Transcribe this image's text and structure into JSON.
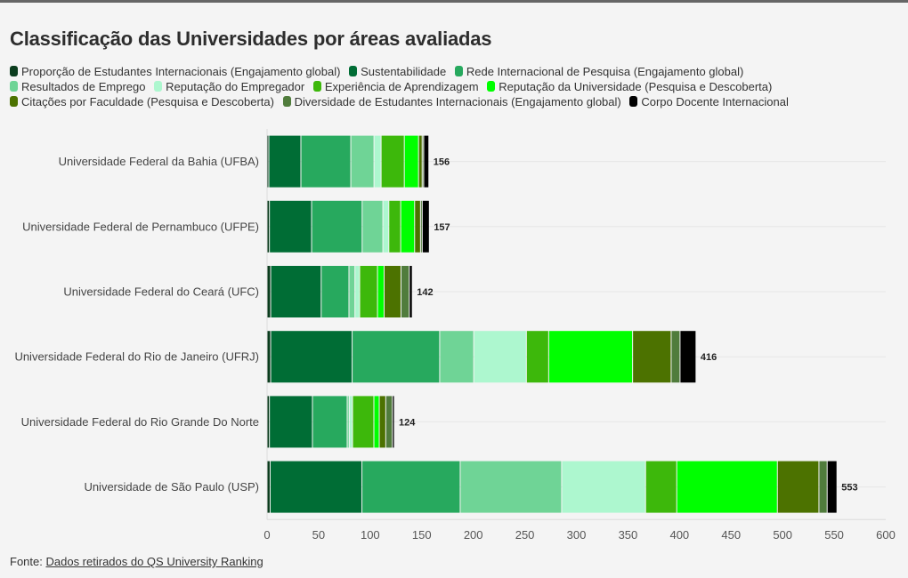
{
  "title": "Classificação das Universidades por áreas avaliadas",
  "footer": {
    "prefix": "Fonte:",
    "link_text": "Dados retirados do QS University Ranking"
  },
  "chart_data": {
    "type": "bar",
    "orientation": "horizontal",
    "stacked": true,
    "title": "Classificação das Universidades por áreas avaliadas",
    "xlabel": "",
    "ylabel": "",
    "xlim": [
      0,
      600
    ],
    "xticks": [
      0,
      50,
      100,
      150,
      200,
      250,
      300,
      350,
      400,
      450,
      500,
      550,
      600
    ],
    "grid": true,
    "legend_position": "top",
    "categories": [
      "Universidade Federal da Bahia (UFBA)",
      "Universidade Federal de Pernambuco (UFPE)",
      "Universidade Federal do Ceará (UFC)",
      "Universidade Federal do Rio de Janeiro (UFRJ)",
      "Universidade Federal do Rio Grande Do Norte",
      "Universidade de São Paulo (USP)"
    ],
    "totals": [
      156,
      157,
      142,
      416,
      124,
      553
    ],
    "series": [
      {
        "name": "Proporção de Estudantes Internacionais (Engajamento global)",
        "color": "#0b3d1e",
        "values": [
          1.7,
          2.3,
          3.5,
          3.5,
          2.3,
          3.0
        ]
      },
      {
        "name": "Sustentabilidade",
        "color": "#006d35",
        "values": [
          31.1,
          40.9,
          49.0,
          79.0,
          41.7,
          89.0
        ]
      },
      {
        "name": "Rede Internacional de Pesquisa (Engajamento global)",
        "color": "#27a95e",
        "values": [
          48.4,
          49.0,
          26.9,
          84.9,
          33.7,
          95.3
        ]
      },
      {
        "name": "Resultados de Emprego",
        "color": "#6fd496",
        "values": [
          22.5,
          20.1,
          5.8,
          33.0,
          2.0,
          98.4
        ]
      },
      {
        "name": "Reputação do Empregador",
        "color": "#adf7cf",
        "values": [
          6.9,
          5.8,
          4.6,
          51.1,
          3.2,
          81.4
        ]
      },
      {
        "name": "Experiência de Aprendizagem",
        "color": "#3db80b",
        "values": [
          22.5,
          11.5,
          17.3,
          21.6,
          20.7,
          30.2
        ]
      },
      {
        "name": "Reputação da Universidade (Pesquisa e Descoberta)",
        "color": "#00ff00",
        "values": [
          13.8,
          13.5,
          6.4,
          81.4,
          5.2,
          97.6
        ]
      },
      {
        "name": "Citações por Faculdade (Pesquisa e Descoberta)",
        "color": "#4c7200",
        "values": [
          3.5,
          5.7,
          16.4,
          37.4,
          6.3,
          40.3
        ]
      },
      {
        "name": "Diversidade de Estudantes Internacionais (Engajamento global)",
        "color": "#507c3c",
        "values": [
          1.5,
          1.7,
          8.0,
          8.6,
          6.4,
          8.0
        ]
      },
      {
        "name": "Corpo Docente Internacional",
        "color": "#000000",
        "values": [
          5.0,
          6.9,
          3.0,
          15.5,
          2.0,
          9.5
        ]
      }
    ]
  }
}
